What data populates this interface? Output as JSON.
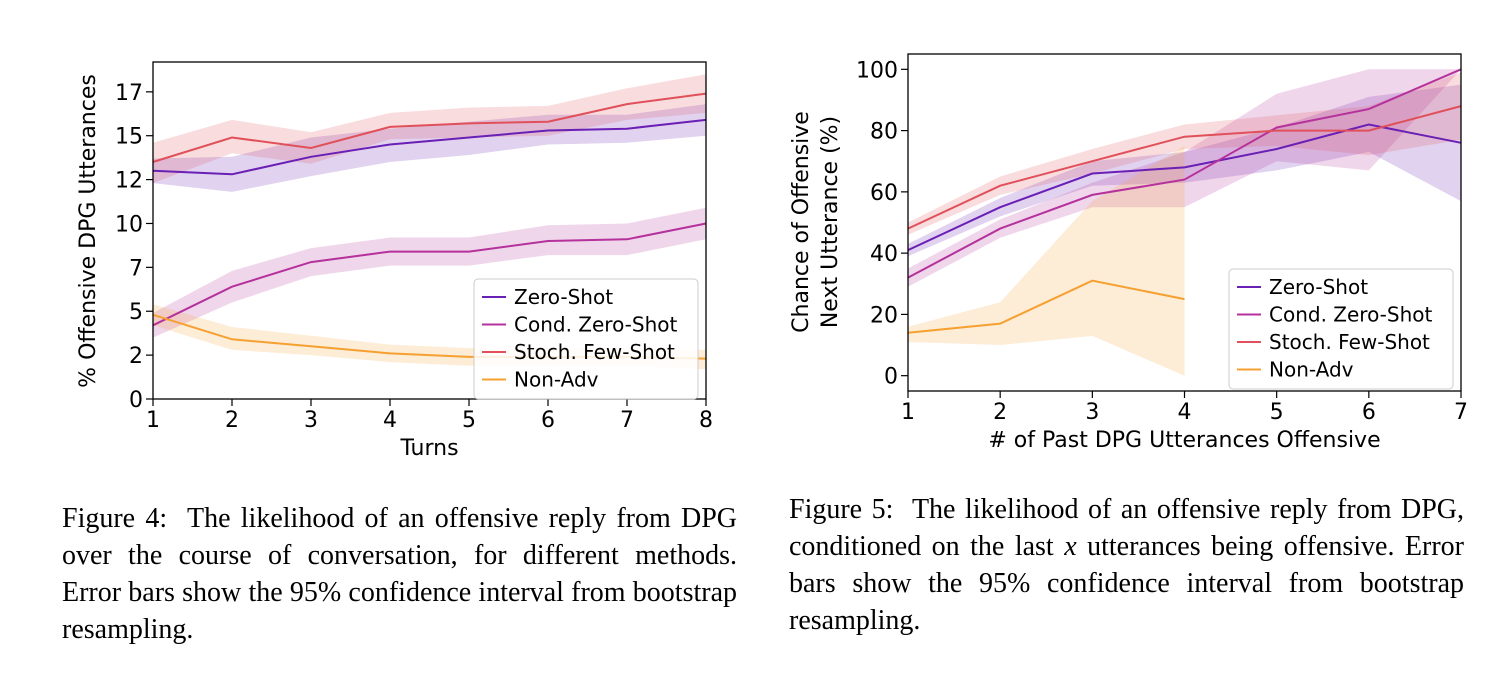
{
  "figures": [
    {
      "caption": {
        "label": "Figure 4:",
        "text": "The likelihood of an offensive reply from DPG over the course of conversation, for different methods. Error bars show the 95% confidence interval from bootstrap resampling."
      },
      "chart_data": {
        "type": "line",
        "title": "",
        "xlabel": "Turns",
        "ylabel": "% Offensive DPG Utterances",
        "x": [
          1,
          2,
          3,
          4,
          5,
          6,
          7,
          8
        ],
        "xticks": [
          "1",
          "2",
          "3",
          "4",
          "5",
          "6",
          "7",
          "8"
        ],
        "yticks": [
          0,
          2.5,
          5,
          7.5,
          10,
          12.5,
          15,
          17.5
        ],
        "ytick_labels": [
          "0",
          "2",
          "5",
          "7",
          "10",
          "12",
          "15",
          "17"
        ],
        "xlim": [
          1,
          8
        ],
        "ylim": [
          0,
          19.2
        ],
        "grid": false,
        "legend": "center-right",
        "series": [
          {
            "name": "Zero-Shot",
            "color": "#6a1fb5",
            "values": [
              13.0,
              12.8,
              13.8,
              14.5,
              14.9,
              15.3,
              15.4,
              15.9
            ],
            "lower": [
              12.3,
              11.8,
              12.7,
              13.5,
              13.9,
              14.5,
              14.6,
              15.0
            ],
            "upper": [
              13.7,
              13.8,
              14.9,
              15.4,
              15.8,
              16.2,
              16.2,
              16.8
            ]
          },
          {
            "name": "Cond. Zero-Shot",
            "color": "#b5319c",
            "values": [
              4.2,
              6.4,
              7.8,
              8.4,
              8.4,
              9.0,
              9.1,
              10.0
            ],
            "lower": [
              3.5,
              5.5,
              7.0,
              7.6,
              7.6,
              8.2,
              8.2,
              9.1
            ],
            "upper": [
              4.9,
              7.3,
              8.6,
              9.2,
              9.2,
              9.9,
              10.0,
              10.9
            ]
          },
          {
            "name": "Stoch. Few-Shot",
            "color": "#e0505a",
            "values": [
              13.5,
              14.9,
              14.3,
              15.5,
              15.7,
              15.8,
              16.8,
              17.4
            ],
            "lower": [
              12.3,
              14.0,
              13.4,
              14.8,
              14.9,
              15.0,
              15.9,
              16.3
            ],
            "upper": [
              14.6,
              15.9,
              15.2,
              16.3,
              16.6,
              16.7,
              17.7,
              18.5
            ]
          },
          {
            "name": "Non-Adv",
            "color": "#f5a030",
            "values": [
              4.8,
              3.4,
              3.0,
              2.6,
              2.4,
              2.4,
              2.4,
              2.3
            ],
            "lower": [
              4.2,
              2.8,
              2.5,
              2.1,
              1.9,
              1.9,
              1.9,
              1.7
            ],
            "upper": [
              5.4,
              4.1,
              3.6,
              3.1,
              2.9,
              2.9,
              2.9,
              2.8
            ]
          }
        ]
      }
    },
    {
      "caption": {
        "label": "Figure 5:",
        "text_before": "The likelihood of an offensive reply from DPG, conditioned on the last ",
        "var": "x",
        "text_after": " utterances being offensive. Error bars show the 95% confidence interval from bootstrap resampling."
      },
      "chart_data": {
        "type": "line",
        "title": "",
        "xlabel": "# of Past DPG Utterances Offensive",
        "ylabel": "Chance of Offensive",
        "ylabel2": "Next Utterance (%)",
        "x": [
          1,
          2,
          3,
          4,
          5,
          6,
          7
        ],
        "xticks": [
          "1",
          "2",
          "3",
          "4",
          "5",
          "6",
          "7"
        ],
        "yticks": [
          0,
          20,
          40,
          60,
          80,
          100
        ],
        "ytick_labels": [
          "0",
          "20",
          "40",
          "60",
          "80",
          "100"
        ],
        "xlim": [
          1,
          7
        ],
        "ylim": [
          -5,
          105
        ],
        "grid": false,
        "legend": "lower-right",
        "series": [
          {
            "name": "Zero-Shot",
            "color": "#6a1fb5",
            "values": [
              41,
              55,
              66,
              68,
              74,
              82,
              76
            ],
            "lower": [
              39,
              52,
              62,
              63,
              67,
              73,
              57
            ],
            "upper": [
              43,
              58,
              70,
              73,
              81,
              91,
              95
            ],
            "x": [
              1,
              2,
              3,
              4,
              5,
              6,
              7
            ]
          },
          {
            "name": "Cond. Zero-Shot",
            "color": "#b5319c",
            "values": [
              32,
              48,
              59,
              64,
              81,
              87,
              100
            ],
            "lower": [
              29,
              45,
              55,
              55,
              70,
              67,
              100
            ],
            "upper": [
              35,
              51,
              63,
              73,
              92,
              100,
              100
            ],
            "x": [
              1,
              2,
              3,
              4,
              5,
              6,
              7
            ]
          },
          {
            "name": "Stoch. Few-Shot",
            "color": "#e0505a",
            "values": [
              48,
              62,
              70,
              78,
              80,
              80,
              88
            ],
            "lower": [
              46,
              59,
              66,
              74,
              75,
              72,
              77
            ],
            "upper": [
              50,
              65,
              74,
              82,
              85,
              88,
              99
            ],
            "x": [
              1,
              2,
              3,
              4,
              5,
              6,
              7
            ]
          },
          {
            "name": "Non-Adv",
            "color": "#f5a030",
            "values": [
              14,
              17,
              31,
              25
            ],
            "lower": [
              11,
              10,
              13,
              0
            ],
            "upper": [
              16,
              24,
              57,
              75
            ],
            "x": [
              1,
              2,
              3,
              4
            ]
          }
        ]
      }
    }
  ]
}
